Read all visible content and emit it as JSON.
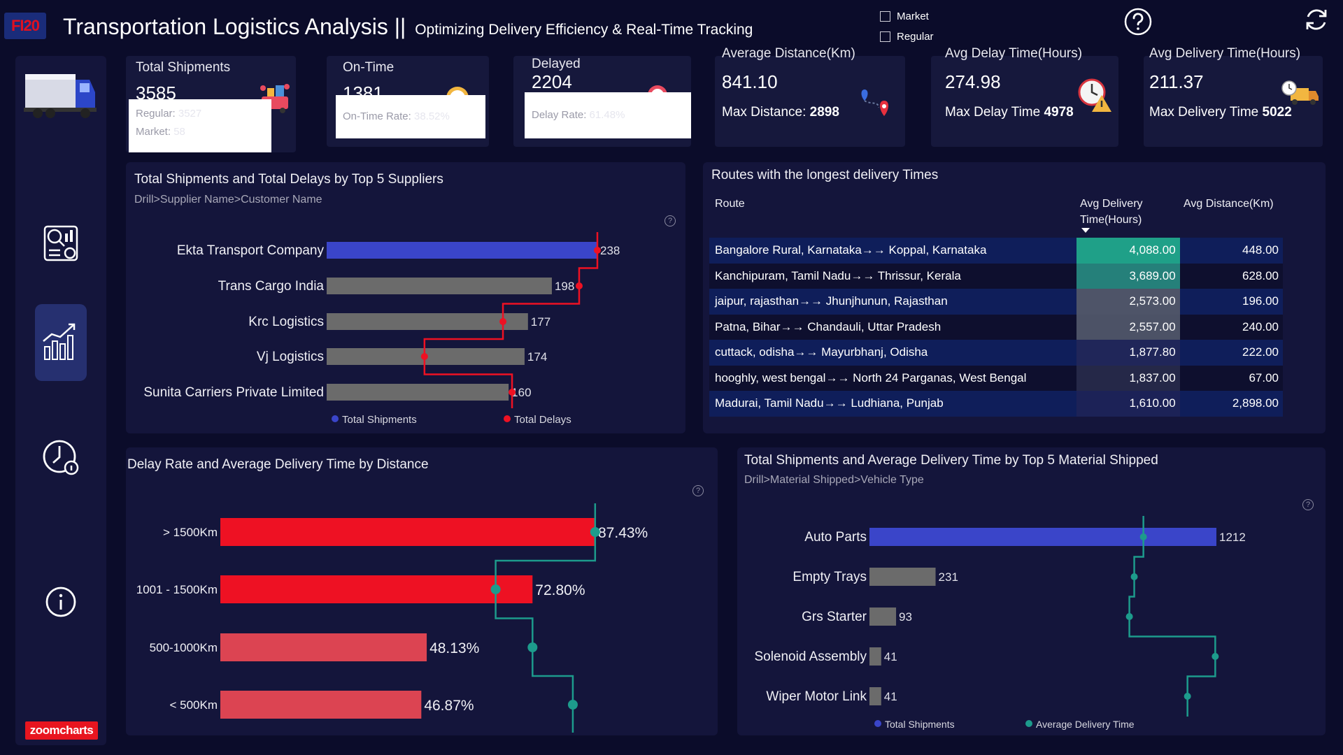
{
  "header": {
    "logo_text_a": "FI",
    "logo_text_b": "20",
    "title": "Transportation Logistics Analysis ||",
    "subtitle": "Optimizing Delivery Efficiency & Real-Time Tracking",
    "filter_market": "Market",
    "filter_regular": "Regular"
  },
  "sidebar": {
    "brand": "zoomcharts"
  },
  "kpis": {
    "total_shipments": {
      "label": "Total Shipments",
      "value": "3585",
      "regular_label": "Regular:",
      "regular_value": "3527",
      "market_label": "Market:",
      "market_value": "58"
    },
    "on_time": {
      "label": "On-Time",
      "value": "1381",
      "rate_label": "On-Time Rate:",
      "rate_value": "38.52%"
    },
    "delayed": {
      "label": "Delayed",
      "value": "2204",
      "rate_label": "Delay Rate:",
      "rate_value": "61.48%"
    },
    "avg_distance": {
      "label": "Average Distance(Km)",
      "value": "841.10",
      "sub_label": "Max Distance:",
      "sub_value": "2898"
    },
    "avg_delay": {
      "label": "Avg Delay Time(Hours)",
      "value": "274.98",
      "sub_label": "Max Delay Time",
      "sub_value": "4978"
    },
    "avg_delivery": {
      "label": "Avg Delivery Time(Hours)",
      "value": "211.37",
      "sub_label": "Max Delivery Time",
      "sub_value": "5022"
    }
  },
  "suppliers_chart": {
    "title": "Total Shipments and Total Delays by Top 5 Suppliers",
    "drill": "Drill>Supplier Name>Customer Name",
    "legend": [
      "Total Shipments",
      "Total Delays"
    ],
    "chart_data": {
      "type": "bar",
      "categories": [
        "Ekta Transport Company",
        "Trans Cargo India",
        "Krc Logistics",
        "Vj Logistics",
        "Sunita Carriers Private Limited"
      ],
      "series": [
        {
          "name": "Total Shipments",
          "values": [
            238,
            198,
            177,
            174,
            160
          ]
        },
        {
          "name": "Total Delays",
          "values": [
            238,
            222,
            155,
            86,
            163
          ]
        }
      ],
      "value_labels": [
        "238",
        "198",
        "177",
        "174",
        "160"
      ]
    }
  },
  "routes_table": {
    "title": "Routes with the longest delivery Times",
    "columns": [
      "Route",
      "Avg Delivery Time(Hours)",
      "Avg Distance(Km)"
    ],
    "rows": [
      {
        "route": "Bangalore Rural, Karnataka→→ Koppal, Karnataka",
        "time": "4,088.00",
        "dist": "448.00",
        "color": "#1fa088"
      },
      {
        "route": "Kanchipuram, Tamil Nadu→→ Thrissur, Kerala",
        "time": "3,689.00",
        "dist": "628.00",
        "color": "#25807a"
      },
      {
        "route": "jaipur, rajasthan→→ Jhunjhunun, Rajasthan",
        "time": "2,573.00",
        "dist": "196.00",
        "color": "#4e5468"
      },
      {
        "route": "Patna, Bihar→→ Chandauli, Uttar Pradesh",
        "time": "2,557.00",
        "dist": "240.00",
        "color": "#4c5266"
      },
      {
        "route": "cuttack, odisha→→ Mayurbhanj, Odisha",
        "time": "1,877.80",
        "dist": "222.00",
        "color": "#202659"
      },
      {
        "route": "hooghly, west bengal→→ North 24 Parganas, West Bengal",
        "time": "1,837.00",
        "dist": "67.00",
        "color": "#252848"
      },
      {
        "route": "Madurai, Tamil Nadu→→ Ludhiana, Punjab",
        "time": "1,610.00",
        "dist": "2,898.00",
        "color": "#1c2257"
      }
    ]
  },
  "distance_chart": {
    "title": "Delay Rate and Average Delivery Time by Distance",
    "chart_data": {
      "type": "bar",
      "categories": [
        "> 1500Km",
        "1001 - 1500Km",
        "500-1000Km",
        "< 500Km"
      ],
      "series": [
        {
          "name": "Delay Rate",
          "values": [
            87.43,
            72.8,
            48.13,
            46.87
          ]
        },
        {
          "name": "Average Delivery Time",
          "values": [
            87.4,
            64.2,
            72.8,
            82.2
          ]
        }
      ],
      "value_labels": [
        "87.43%",
        "72.80%",
        "48.13%",
        "46.87%"
      ],
      "colors": [
        "#ee1123",
        "#ee1123",
        "#dc4452",
        "#dc4452"
      ]
    }
  },
  "material_chart": {
    "title": "Total Shipments and Average Delivery Time by Top 5 Material Shipped",
    "drill": "Drill>Material Shipped>Vehicle Type",
    "legend": [
      "Total Shipments",
      "Average Delivery Time"
    ],
    "chart_data": {
      "type": "bar",
      "categories": [
        "Auto Parts",
        "Empty Trays",
        "Grs Starter",
        "Solenoid Assembly",
        "Wiper Motor Link"
      ],
      "series": [
        {
          "name": "Total Shipments",
          "values": [
            1212,
            231,
            93,
            41,
            41
          ]
        },
        {
          "name": "Average Delivery Time",
          "values": [
            957,
            925,
            908,
            1208,
            1111
          ]
        }
      ],
      "value_labels": [
        "1212",
        "231",
        "93",
        "41",
        "41"
      ]
    }
  },
  "colors": {
    "accent_blue": "#3a45c9",
    "bar_gray": "#6b6b6b",
    "line_red": "#ee1123",
    "line_teal": "#1d9b8c"
  }
}
